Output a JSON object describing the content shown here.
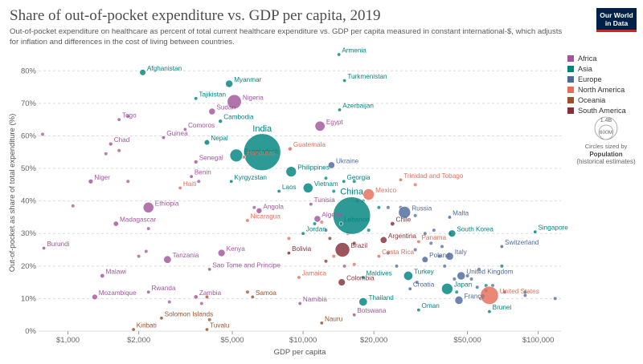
{
  "header": {
    "title": "Share of out-of-pocket expenditure vs. GDP per capita, 2019",
    "subtitle": "Out-of-pocket expenditure on healthcare as percent of total current healthcare expenditure vs. GDP per capita measured in constant international-$, which adjusts for inflation and differences in the cost of living between countries.",
    "logo_line1": "Our World",
    "logo_line2": "in Data"
  },
  "legend": {
    "items": [
      {
        "label": "Africa",
        "color": "#a2559c"
      },
      {
        "label": "Asia",
        "color": "#00847e"
      },
      {
        "label": "Europe",
        "color": "#4c6a9c"
      },
      {
        "label": "North America",
        "color": "#e56e5a"
      },
      {
        "label": "Oceania",
        "color": "#9a5129"
      },
      {
        "label": "South America",
        "color": "#883039"
      }
    ],
    "size_key_big": "1.4B",
    "size_key_small": "600M",
    "size_caption": "Circles sized by",
    "size_var": "Population",
    "size_note": "(historical estimates)"
  },
  "chart_data": {
    "type": "scatter",
    "xlabel": "GDP per capita",
    "ylabel": "Out-of-pocket as share of total expenditure (%)",
    "x_scale": "log",
    "xlim": [
      750,
      125000
    ],
    "ylim": [
      0,
      85
    ],
    "x_ticks": [
      {
        "value": 1000,
        "label": "$1,000"
      },
      {
        "value": 2000,
        "label": "$2,000"
      },
      {
        "value": 5000,
        "label": "$5,000"
      },
      {
        "value": 10000,
        "label": "$10,000"
      },
      {
        "value": 20000,
        "label": "$20,000"
      },
      {
        "value": 50000,
        "label": "$50,000"
      },
      {
        "value": 100000,
        "label": "$100,000"
      }
    ],
    "y_ticks": [
      {
        "value": 0,
        "label": "0%"
      },
      {
        "value": 10,
        "label": "10%"
      },
      {
        "value": 20,
        "label": "20%"
      },
      {
        "value": 30,
        "label": "30%"
      },
      {
        "value": 40,
        "label": "40%"
      },
      {
        "value": 50,
        "label": "50%"
      },
      {
        "value": 60,
        "label": "60%"
      },
      {
        "value": 70,
        "label": "70%"
      },
      {
        "value": 80,
        "label": "80%"
      }
    ],
    "grid": "horizontal-dashed",
    "legend_position": "right",
    "points": [
      {
        "name": "Armenia",
        "region": "Asia",
        "gdp": 14200,
        "oop": 85,
        "pop": 3
      },
      {
        "name": "Afghanistan",
        "region": "Asia",
        "gdp": 2080,
        "oop": 79.5,
        "pop": 38
      },
      {
        "name": "Turkmenistan",
        "region": "Asia",
        "gdp": 15000,
        "oop": 77,
        "pop": 6
      },
      {
        "name": "Myanmar",
        "region": "Asia",
        "gdp": 4850,
        "oop": 76,
        "pop": 54
      },
      {
        "name": "Tajikistan",
        "region": "Asia",
        "gdp": 3500,
        "oop": 71.5,
        "pop": 9
      },
      {
        "name": "Nigeria",
        "region": "Africa",
        "gdp": 5100,
        "oop": 70.5,
        "pop": 200
      },
      {
        "name": "Sudan",
        "region": "Africa",
        "gdp": 4100,
        "oop": 67.5,
        "pop": 43
      },
      {
        "name": "Azerbaijan",
        "region": "Asia",
        "gdp": 14300,
        "oop": 68,
        "pop": 10
      },
      {
        "name": "Togo",
        "region": "Africa",
        "gdp": 1650,
        "oop": 65,
        "pop": 8
      },
      {
        "name": "Cambodia",
        "region": "Asia",
        "gdp": 4450,
        "oop": 64.5,
        "pop": 16
      },
      {
        "name": "Egypt",
        "region": "Africa",
        "gdp": 11800,
        "oop": 63,
        "pop": 100
      },
      {
        "name": "Comoros",
        "region": "Africa",
        "gdp": 3150,
        "oop": 62,
        "pop": 1
      },
      {
        "name": "Guinea",
        "region": "Africa",
        "gdp": 2550,
        "oop": 59.5,
        "pop": 13
      },
      {
        "name": "Nepal",
        "region": "Asia",
        "gdp": 3900,
        "oop": 58,
        "pop": 29
      },
      {
        "name": "Chad",
        "region": "Africa",
        "gdp": 1520,
        "oop": 57.5,
        "pop": 16
      },
      {
        "name": "India",
        "region": "Asia",
        "gdp": 6700,
        "oop": 55,
        "pop": 1370
      },
      {
        "name": "Guatemala",
        "region": "North America",
        "gdp": 8800,
        "oop": 56,
        "pop": 17
      },
      {
        "name": "Bangladesh",
        "region": "Asia",
        "gdp": 5200,
        "oop": 54,
        "pop": 163
      },
      {
        "name": "Honduras",
        "region": "North America",
        "gdp": 5600,
        "oop": 53.5,
        "pop": 10
      },
      {
        "name": "Senegal",
        "region": "Africa",
        "gdp": 3500,
        "oop": 52,
        "pop": 16
      },
      {
        "name": "Ukraine",
        "region": "Europe",
        "gdp": 13200,
        "oop": 51,
        "pop": 44
      },
      {
        "name": "Philippines",
        "region": "Asia",
        "gdp": 8900,
        "oop": 49,
        "pop": 108
      },
      {
        "name": "Benin",
        "region": "Africa",
        "gdp": 3350,
        "oop": 47.5,
        "pop": 12
      },
      {
        "name": "Niger",
        "region": "Africa",
        "gdp": 1250,
        "oop": 46,
        "pop": 23
      },
      {
        "name": "Kyrgyzstan",
        "region": "Asia",
        "gdp": 4950,
        "oop": 46,
        "pop": 6
      },
      {
        "name": "Georgia",
        "region": "Asia",
        "gdp": 14900,
        "oop": 46,
        "pop": 4
      },
      {
        "name": "Trinidad and Tobago",
        "region": "North America",
        "gdp": 26000,
        "oop": 46.5,
        "pop": 1
      },
      {
        "name": "Vietnam",
        "region": "Asia",
        "gdp": 10500,
        "oop": 44,
        "pop": 96
      },
      {
        "name": "Haiti",
        "region": "North America",
        "gdp": 3000,
        "oop": 44,
        "pop": 11
      },
      {
        "name": "Laos",
        "region": "Asia",
        "gdp": 7900,
        "oop": 43,
        "pop": 7
      },
      {
        "name": "Mexico",
        "region": "North America",
        "gdp": 19000,
        "oop": 42,
        "pop": 127
      },
      {
        "name": "Ethiopia",
        "region": "Africa",
        "gdp": 2200,
        "oop": 38,
        "pop": 112
      },
      {
        "name": "Tunisia",
        "region": "Africa",
        "gdp": 10800,
        "oop": 39,
        "pop": 12
      },
      {
        "name": "China",
        "region": "Asia",
        "gdp": 16100,
        "oop": 35.5,
        "pop": 1400
      },
      {
        "name": "Russia",
        "region": "Europe",
        "gdp": 27000,
        "oop": 36.5,
        "pop": 144
      },
      {
        "name": "Malta",
        "region": "Europe",
        "gdp": 42000,
        "oop": 35,
        "pop": 1
      },
      {
        "name": "Angola",
        "region": "Africa",
        "gdp": 6500,
        "oop": 37,
        "pop": 32
      },
      {
        "name": "Nicaragua",
        "region": "North America",
        "gdp": 5800,
        "oop": 34,
        "pop": 7
      },
      {
        "name": "Algeria",
        "region": "Africa",
        "gdp": 11500,
        "oop": 34.5,
        "pop": 43
      },
      {
        "name": "Lebanon",
        "region": "Asia",
        "gdp": 14500,
        "oop": 33,
        "pop": 7
      },
      {
        "name": "Madagascar",
        "region": "Africa",
        "gdp": 1600,
        "oop": 33,
        "pop": 27
      },
      {
        "name": "Chile",
        "region": "South America",
        "gdp": 24000,
        "oop": 33,
        "pop": 19
      },
      {
        "name": "Jordan",
        "region": "Asia",
        "gdp": 10000,
        "oop": 30,
        "pop": 10
      },
      {
        "name": "South Korea",
        "region": "Asia",
        "gdp": 43000,
        "oop": 30,
        "pop": 52
      },
      {
        "name": "Singapore",
        "region": "Asia",
        "gdp": 97000,
        "oop": 30.5,
        "pop": 6
      },
      {
        "name": "Argentina",
        "region": "South America",
        "gdp": 22000,
        "oop": 28,
        "pop": 45
      },
      {
        "name": "Panama",
        "region": "North America",
        "gdp": 31000,
        "oop": 27.5,
        "pop": 4
      },
      {
        "name": "Brazil",
        "region": "South America",
        "gdp": 14700,
        "oop": 25,
        "pop": 211
      },
      {
        "name": "Switzerland",
        "region": "Europe",
        "gdp": 70000,
        "oop": 26,
        "pop": 9
      },
      {
        "name": "Burundi",
        "region": "Africa",
        "gdp": 790,
        "oop": 25.5,
        "pop": 12
      },
      {
        "name": "Kenya",
        "region": "Africa",
        "gdp": 4500,
        "oop": 24,
        "pop": 52
      },
      {
        "name": "Bolivia",
        "region": "South America",
        "gdp": 8700,
        "oop": 24,
        "pop": 12
      },
      {
        "name": "Costa Rica",
        "region": "North America",
        "gdp": 21000,
        "oop": 23,
        "pop": 5
      },
      {
        "name": "Italy",
        "region": "Europe",
        "gdp": 42000,
        "oop": 23,
        "pop": 60
      },
      {
        "name": "Tanzania",
        "region": "Africa",
        "gdp": 2650,
        "oop": 22,
        "pop": 58
      },
      {
        "name": "Poland",
        "region": "Europe",
        "gdp": 33000,
        "oop": 22,
        "pop": 38
      },
      {
        "name": "Sao Tome and Principe",
        "region": "Africa",
        "gdp": 4000,
        "oop": 19,
        "pop": 1
      },
      {
        "name": "United Kingdom",
        "region": "Europe",
        "gdp": 47000,
        "oop": 17,
        "pop": 67
      },
      {
        "name": "Turkey",
        "region": "Asia",
        "gdp": 28000,
        "oop": 17,
        "pop": 83
      },
      {
        "name": "Maldives",
        "region": "Asia",
        "gdp": 18000,
        "oop": 16.5,
        "pop": 1
      },
      {
        "name": "Jamaica",
        "region": "North America",
        "gdp": 9600,
        "oop": 16.5,
        "pop": 3
      },
      {
        "name": "Malawi",
        "region": "Africa",
        "gdp": 1400,
        "oop": 17,
        "pop": 19
      },
      {
        "name": "Colombia",
        "region": "South America",
        "gdp": 14600,
        "oop": 15,
        "pop": 50
      },
      {
        "name": "Croatia",
        "region": "Europe",
        "gdp": 28500,
        "oop": 13,
        "pop": 4
      },
      {
        "name": "Japan",
        "region": "Asia",
        "gdp": 41000,
        "oop": 13,
        "pop": 126
      },
      {
        "name": "United States",
        "region": "North America",
        "gdp": 62000,
        "oop": 11,
        "pop": 328
      },
      {
        "name": "Rwanda",
        "region": "Africa",
        "gdp": 2200,
        "oop": 12,
        "pop": 13
      },
      {
        "name": "Mozambique",
        "region": "Africa",
        "gdp": 1300,
        "oop": 10.5,
        "pop": 30
      },
      {
        "name": "Zambia",
        "region": "Africa",
        "gdp": 3500,
        "oop": 10.5,
        "pop": 18
      },
      {
        "name": "Samoa",
        "region": "Oceania",
        "gdp": 6100,
        "oop": 10.5,
        "pop": 0.2
      },
      {
        "name": "France",
        "region": "Europe",
        "gdp": 46000,
        "oop": 9.5,
        "pop": 67
      },
      {
        "name": "Thailand",
        "region": "Asia",
        "gdp": 18000,
        "oop": 9,
        "pop": 70
      },
      {
        "name": "Namibia",
        "region": "Africa",
        "gdp": 9700,
        "oop": 8.5,
        "pop": 2
      },
      {
        "name": "Oman",
        "region": "Asia",
        "gdp": 31000,
        "oop": 6.5,
        "pop": 5
      },
      {
        "name": "Brunei",
        "region": "Asia",
        "gdp": 62000,
        "oop": 6,
        "pop": 0.4
      },
      {
        "name": "Botswana",
        "region": "Africa",
        "gdp": 16500,
        "oop": 5,
        "pop": 2
      },
      {
        "name": "Solomon Islands",
        "region": "Oceania",
        "gdp": 2500,
        "oop": 4,
        "pop": 0.7
      },
      {
        "name": "Nauru",
        "region": "Oceania",
        "gdp": 12000,
        "oop": 2.5,
        "pop": 0.01
      },
      {
        "name": "Kiribati",
        "region": "Oceania",
        "gdp": 1900,
        "oop": 0.5,
        "pop": 0.1
      },
      {
        "name": "Tuvalu",
        "region": "Oceania",
        "gdp": 3900,
        "oop": 0.5,
        "pop": 0.01
      }
    ],
    "unlabeled": [
      {
        "region": "Africa",
        "gdp": 780,
        "oop": 60.5
      },
      {
        "region": "Africa",
        "gdp": 1800,
        "oop": 66
      },
      {
        "region": "Africa",
        "gdp": 1450,
        "oop": 54.5
      },
      {
        "region": "Africa",
        "gdp": 1650,
        "oop": 55.5
      },
      {
        "region": "Africa",
        "gdp": 1050,
        "oop": 38.5
      },
      {
        "region": "Africa",
        "gdp": 2200,
        "oop": 31.5
      },
      {
        "region": "Africa",
        "gdp": 2000,
        "oop": 23
      },
      {
        "region": "Africa",
        "gdp": 2150,
        "oop": 24.5
      },
      {
        "region": "Africa",
        "gdp": 1800,
        "oop": 46
      },
      {
        "region": "Africa",
        "gdp": 3600,
        "oop": 46
      },
      {
        "region": "Africa",
        "gdp": 2700,
        "oop": 9
      },
      {
        "region": "Africa",
        "gdp": 3700,
        "oop": 8.5
      },
      {
        "region": "Africa",
        "gdp": 6200,
        "oop": 38
      },
      {
        "region": "Africa",
        "gdp": 15000,
        "oop": 20
      },
      {
        "region": "Asia",
        "gdp": 21000,
        "oop": 38
      },
      {
        "region": "Asia",
        "gdp": 19000,
        "oop": 31
      },
      {
        "region": "Asia",
        "gdp": 12500,
        "oop": 47
      },
      {
        "region": "Asia",
        "gdp": 13500,
        "oop": 43
      },
      {
        "region": "Asia",
        "gdp": 18000,
        "oop": 40
      },
      {
        "region": "Asia",
        "gdp": 45000,
        "oop": 12
      },
      {
        "region": "Asia",
        "gdp": 60000,
        "oop": 14
      },
      {
        "region": "Asia",
        "gdp": 88000,
        "oop": 12
      },
      {
        "region": "Asia",
        "gdp": 70000,
        "oop": 20
      },
      {
        "region": "Asia",
        "gdp": 16500,
        "oop": 46
      },
      {
        "region": "Asia",
        "gdp": 11200,
        "oop": 33
      },
      {
        "region": "Asia",
        "gdp": 42000,
        "oop": 30
      },
      {
        "region": "Europe",
        "gdp": 30000,
        "oop": 35.5
      },
      {
        "region": "Europe",
        "gdp": 30000,
        "oop": 25
      },
      {
        "region": "Europe",
        "gdp": 33000,
        "oop": 30
      },
      {
        "region": "Europe",
        "gdp": 35000,
        "oop": 27
      },
      {
        "region": "Europe",
        "gdp": 36000,
        "oop": 31
      },
      {
        "region": "Europe",
        "gdp": 38000,
        "oop": 23
      },
      {
        "region": "Europe",
        "gdp": 39000,
        "oop": 26
      },
      {
        "region": "Europe",
        "gdp": 40000,
        "oop": 20
      },
      {
        "region": "Europe",
        "gdp": 44000,
        "oop": 16
      },
      {
        "region": "Europe",
        "gdp": 52000,
        "oop": 16
      },
      {
        "region": "Europe",
        "gdp": 55000,
        "oop": 13.5
      },
      {
        "region": "Europe",
        "gdp": 56000,
        "oop": 19
      },
      {
        "region": "Europe",
        "gdp": 57000,
        "oop": 10
      },
      {
        "region": "Europe",
        "gdp": 60000,
        "oop": 12.5
      },
      {
        "region": "Europe",
        "gdp": 64000,
        "oop": 14
      },
      {
        "region": "Europe",
        "gdp": 72000,
        "oop": 12
      },
      {
        "region": "Europe",
        "gdp": 88000,
        "oop": 11
      },
      {
        "region": "Europe",
        "gdp": 118000,
        "oop": 10
      },
      {
        "region": "Europe",
        "gdp": 23000,
        "oop": 24
      },
      {
        "region": "Europe",
        "gdp": 25000,
        "oop": 20
      },
      {
        "region": "Europe",
        "gdp": 30500,
        "oop": 15
      },
      {
        "region": "Europe",
        "gdp": 26000,
        "oop": 38
      },
      {
        "region": "Europe",
        "gdp": 50000,
        "oop": 17
      },
      {
        "region": "Europe",
        "gdp": 12500,
        "oop": 31
      },
      {
        "region": "Europe",
        "gdp": 23000,
        "oop": 38
      },
      {
        "region": "North America",
        "gdp": 17000,
        "oop": 40
      },
      {
        "region": "North America",
        "gdp": 15500,
        "oop": 30
      },
      {
        "region": "North America",
        "gdp": 12000,
        "oop": 33.5
      },
      {
        "region": "North America",
        "gdp": 8700,
        "oop": 28.5
      },
      {
        "region": "North America",
        "gdp": 13500,
        "oop": 23
      },
      {
        "region": "North America",
        "gdp": 16500,
        "oop": 20.5
      },
      {
        "region": "North America",
        "gdp": 30000,
        "oop": 45
      },
      {
        "region": "South America",
        "gdp": 12500,
        "oop": 21.5
      },
      {
        "region": "South America",
        "gdp": 13000,
        "oop": 28.5
      },
      {
        "region": "South America",
        "gdp": 16500,
        "oop": 27
      },
      {
        "region": "Oceania",
        "gdp": 5800,
        "oop": 12
      },
      {
        "region": "Oceania",
        "gdp": 3900,
        "oop": 10.5
      },
      {
        "region": "Oceania",
        "gdp": 4000,
        "oop": 3.5
      }
    ]
  }
}
